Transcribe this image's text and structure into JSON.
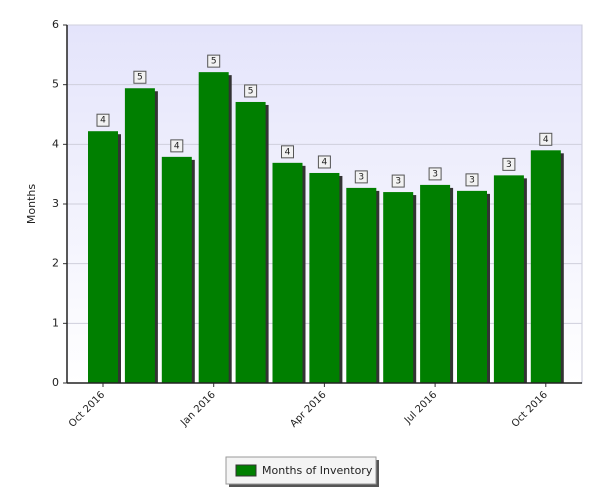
{
  "chart_data": {
    "type": "bar",
    "y_label": "Months",
    "categories": [
      "Oct 2016 ",
      null,
      null,
      "Jan 2016",
      null,
      null,
      "Apr 2016",
      null,
      null,
      "Jul 2016",
      null,
      null,
      "Oct 2016"
    ],
    "series": [
      {
        "name": "Months of Inventory",
        "color": "#007f00",
        "values": [
          4.22,
          4.94,
          3.79,
          5.21,
          4.71,
          3.69,
          3.52,
          3.27,
          3.2,
          3.32,
          3.22,
          3.48,
          3.9
        ],
        "value_labels": [
          "4",
          "5",
          "4",
          "5",
          "5",
          "4",
          "4",
          "3",
          "3",
          "3",
          "3",
          "3",
          "4"
        ]
      }
    ],
    "ylim": [
      0,
      6
    ],
    "yticks": [
      0,
      1,
      2,
      3,
      4,
      5,
      6
    ],
    "grid": true
  }
}
